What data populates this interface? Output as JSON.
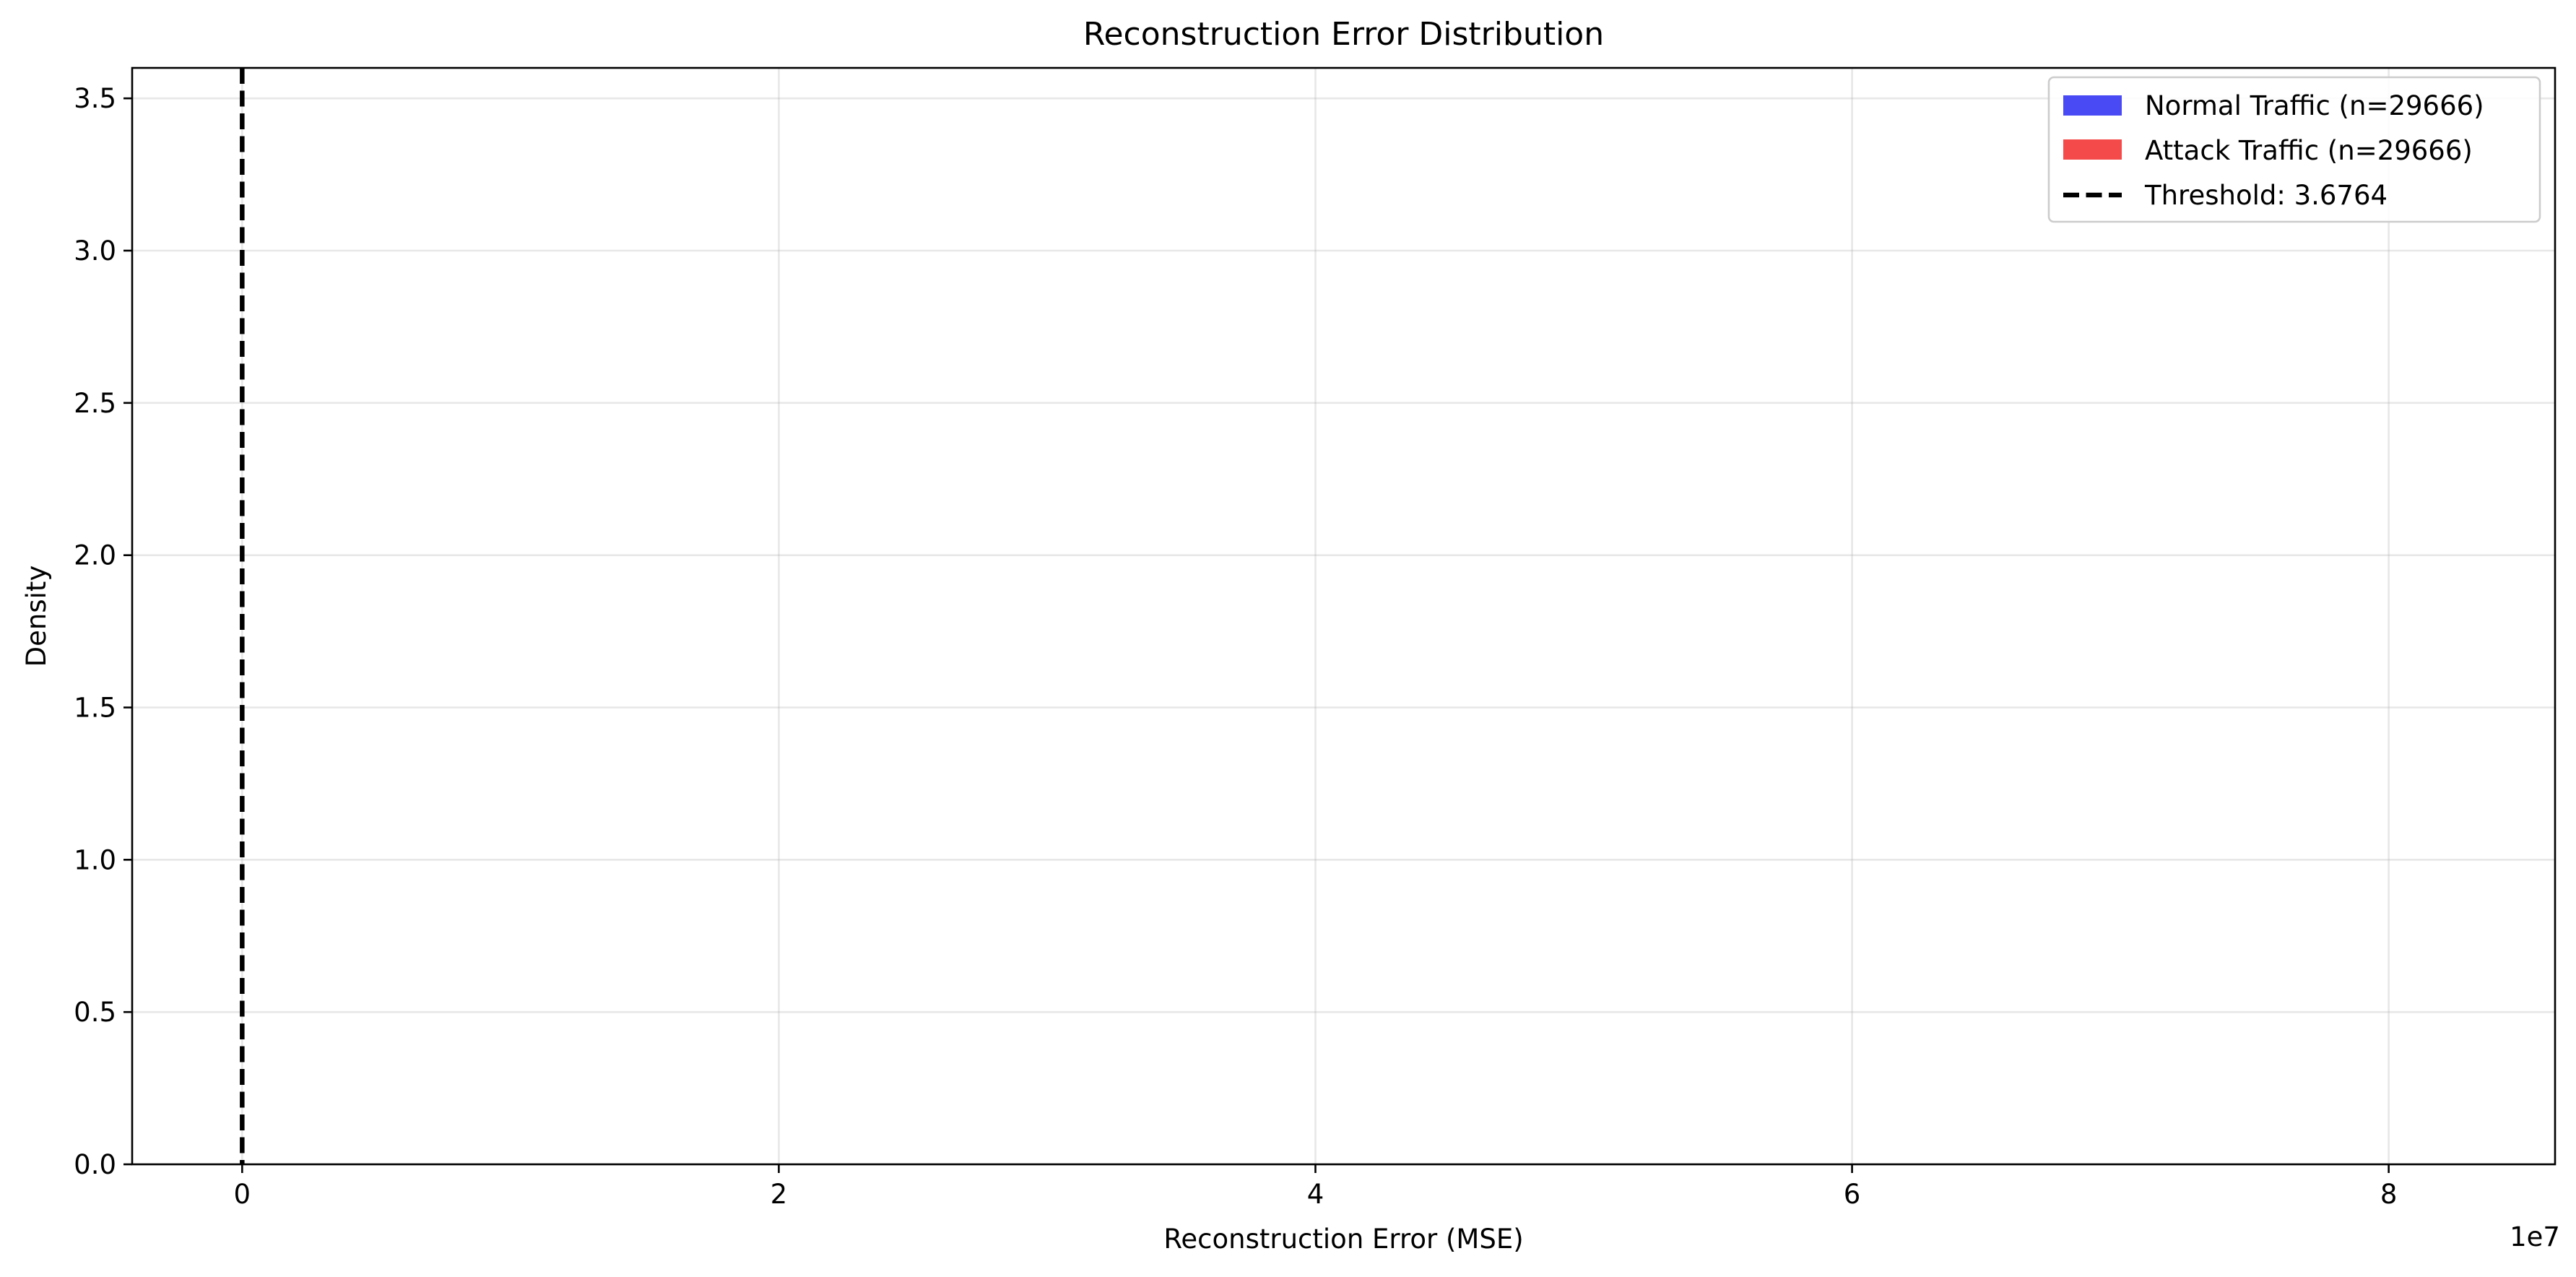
{
  "chart_data": {
    "type": "histogram",
    "title": "Reconstruction Error Distribution",
    "xlabel": "Reconstruction Error (MSE)",
    "ylabel": "Density",
    "x_scale_label": "1e7",
    "xlim": [
      -0.41,
      8.62
    ],
    "ylim": [
      0,
      3.6
    ],
    "xticks": [
      {
        "value": 0,
        "label": "0"
      },
      {
        "value": 2,
        "label": "2"
      },
      {
        "value": 4,
        "label": "4"
      },
      {
        "value": 6,
        "label": "6"
      },
      {
        "value": 8,
        "label": "8"
      }
    ],
    "yticks": [
      {
        "value": 0.0,
        "label": "0.0"
      },
      {
        "value": 0.5,
        "label": "0.5"
      },
      {
        "value": 1.0,
        "label": "1.0"
      },
      {
        "value": 1.5,
        "label": "1.5"
      },
      {
        "value": 2.0,
        "label": "2.0"
      },
      {
        "value": 2.5,
        "label": "2.5"
      },
      {
        "value": 3.0,
        "label": "3.0"
      },
      {
        "value": 3.5,
        "label": "3.5"
      }
    ],
    "grid": true,
    "legend_position": "top-right",
    "series": [
      {
        "name": "Normal Traffic (n=29666)",
        "kind": "histogram",
        "color": "#4a4af5",
        "values": []
      },
      {
        "name": "Attack Traffic (n=29666)",
        "kind": "histogram",
        "color": "#f54a4a",
        "values": []
      }
    ],
    "threshold": {
      "name": "Threshold: 3.6764",
      "value": 3.6764,
      "x_data_units": 3.6764e-07,
      "style": "dashed",
      "color": "#000000"
    }
  }
}
